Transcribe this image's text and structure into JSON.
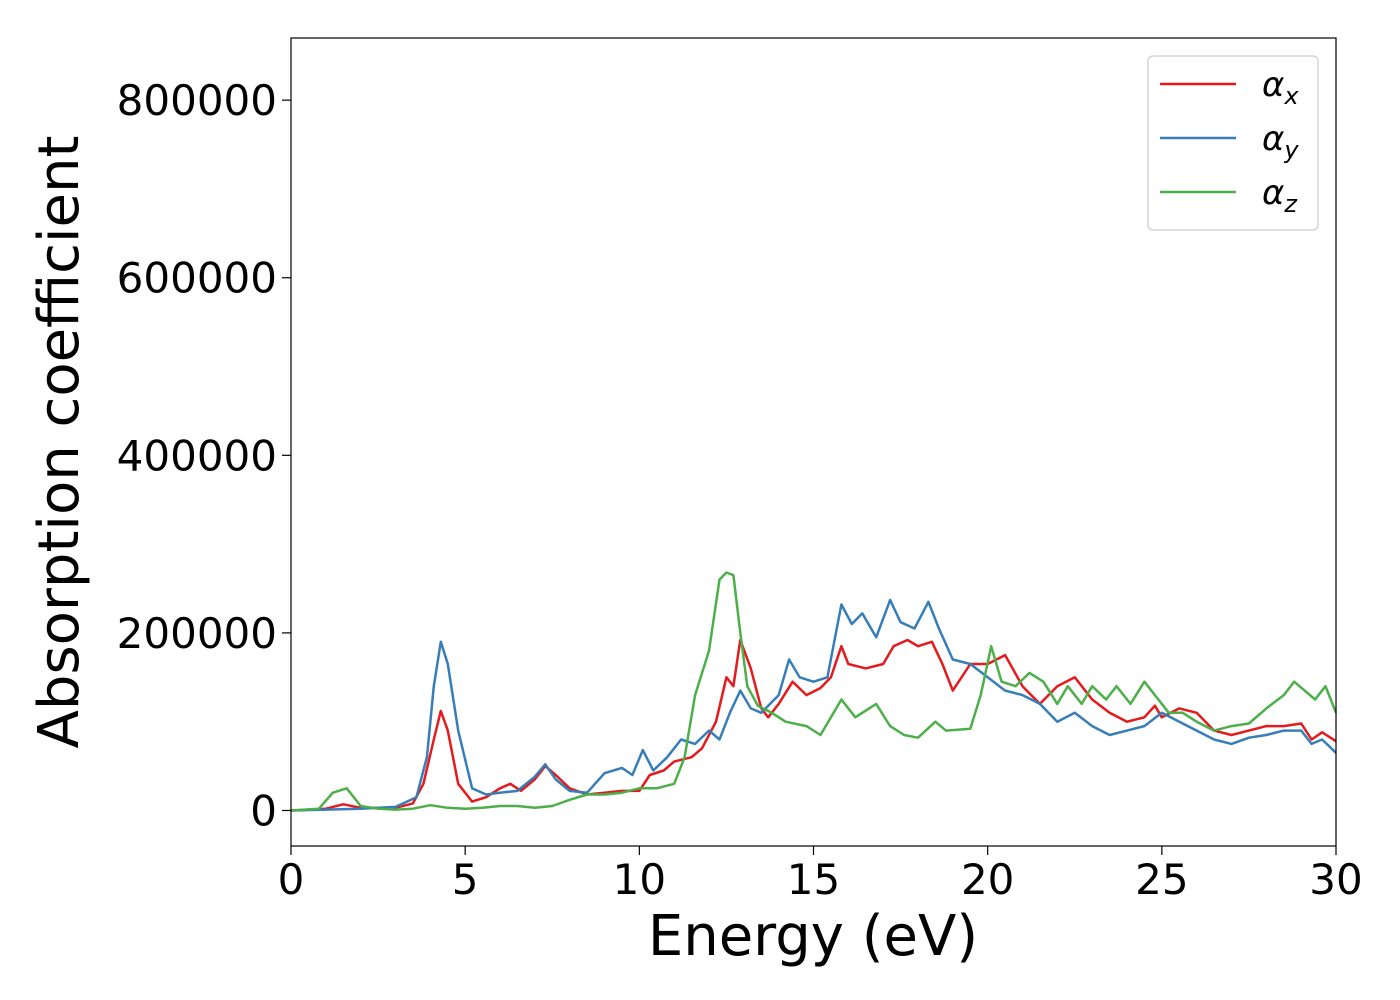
{
  "chart_data": {
    "type": "line",
    "xlabel": "Energy (eV)",
    "ylabel": "Absorption coefficient",
    "xlim": [
      0,
      30
    ],
    "ylim": [
      -40000,
      870000
    ],
    "x_ticks": [
      0,
      5,
      10,
      15,
      20,
      25,
      30
    ],
    "x_tick_labels": [
      "0",
      "5",
      "10",
      "15",
      "20",
      "25",
      "30"
    ],
    "y_ticks": [
      0,
      200000,
      400000,
      600000,
      800000
    ],
    "y_tick_labels": [
      "0",
      "200000",
      "400000",
      "600000",
      "800000"
    ],
    "grid": false,
    "legend_position": "top-right",
    "series": [
      {
        "name": "αx",
        "legend": {
          "base": "α",
          "sub": "x"
        },
        "color": "#e41a1c",
        "points": [
          [
            0,
            0
          ],
          [
            1,
            2000
          ],
          [
            1.5,
            7000
          ],
          [
            2,
            3000
          ],
          [
            3,
            3000
          ],
          [
            3.5,
            8000
          ],
          [
            3.8,
            30000
          ],
          [
            4.1,
            80000
          ],
          [
            4.3,
            112000
          ],
          [
            4.5,
            90000
          ],
          [
            4.8,
            30000
          ],
          [
            5.2,
            10000
          ],
          [
            5.6,
            15000
          ],
          [
            6,
            25000
          ],
          [
            6.3,
            30000
          ],
          [
            6.6,
            22000
          ],
          [
            7,
            35000
          ],
          [
            7.3,
            50000
          ],
          [
            7.6,
            40000
          ],
          [
            8,
            25000
          ],
          [
            8.5,
            18000
          ],
          [
            9,
            20000
          ],
          [
            9.5,
            22000
          ],
          [
            10,
            22000
          ],
          [
            10.3,
            40000
          ],
          [
            10.7,
            45000
          ],
          [
            11,
            55000
          ],
          [
            11.5,
            60000
          ],
          [
            11.8,
            70000
          ],
          [
            12.2,
            100000
          ],
          [
            12.5,
            150000
          ],
          [
            12.7,
            140000
          ],
          [
            12.9,
            192000
          ],
          [
            13.2,
            160000
          ],
          [
            13.5,
            115000
          ],
          [
            13.7,
            105000
          ],
          [
            14,
            120000
          ],
          [
            14.4,
            145000
          ],
          [
            14.8,
            130000
          ],
          [
            15.2,
            138000
          ],
          [
            15.5,
            150000
          ],
          [
            15.8,
            185000
          ],
          [
            16,
            165000
          ],
          [
            16.5,
            160000
          ],
          [
            17,
            165000
          ],
          [
            17.3,
            185000
          ],
          [
            17.7,
            192000
          ],
          [
            18,
            185000
          ],
          [
            18.4,
            190000
          ],
          [
            18.7,
            165000
          ],
          [
            19,
            135000
          ],
          [
            19.5,
            165000
          ],
          [
            20,
            165000
          ],
          [
            20.5,
            175000
          ],
          [
            21,
            140000
          ],
          [
            21.5,
            120000
          ],
          [
            22,
            140000
          ],
          [
            22.5,
            150000
          ],
          [
            23,
            125000
          ],
          [
            23.5,
            110000
          ],
          [
            24,
            100000
          ],
          [
            24.5,
            105000
          ],
          [
            24.8,
            118000
          ],
          [
            25,
            105000
          ],
          [
            25.5,
            115000
          ],
          [
            26,
            110000
          ],
          [
            26.5,
            90000
          ],
          [
            27,
            85000
          ],
          [
            27.5,
            90000
          ],
          [
            28,
            95000
          ],
          [
            28.5,
            95000
          ],
          [
            29,
            98000
          ],
          [
            29.3,
            80000
          ],
          [
            29.6,
            88000
          ],
          [
            30,
            78000
          ]
        ]
      },
      {
        "name": "αy",
        "legend": {
          "base": "α",
          "sub": "y"
        },
        "color": "#377eb8",
        "points": [
          [
            0,
            0
          ],
          [
            1,
            1000
          ],
          [
            2,
            2000
          ],
          [
            3,
            4000
          ],
          [
            3.6,
            15000
          ],
          [
            3.9,
            60000
          ],
          [
            4.1,
            140000
          ],
          [
            4.3,
            190000
          ],
          [
            4.5,
            165000
          ],
          [
            4.8,
            90000
          ],
          [
            5.2,
            25000
          ],
          [
            5.6,
            18000
          ],
          [
            6,
            20000
          ],
          [
            6.5,
            22000
          ],
          [
            7,
            38000
          ],
          [
            7.3,
            52000
          ],
          [
            7.6,
            35000
          ],
          [
            8,
            22000
          ],
          [
            8.5,
            20000
          ],
          [
            9,
            42000
          ],
          [
            9.5,
            48000
          ],
          [
            9.8,
            40000
          ],
          [
            10.1,
            68000
          ],
          [
            10.4,
            45000
          ],
          [
            10.8,
            60000
          ],
          [
            11.2,
            80000
          ],
          [
            11.6,
            75000
          ],
          [
            12,
            90000
          ],
          [
            12.3,
            80000
          ],
          [
            12.6,
            110000
          ],
          [
            12.9,
            135000
          ],
          [
            13.2,
            115000
          ],
          [
            13.5,
            110000
          ],
          [
            14,
            130000
          ],
          [
            14.3,
            170000
          ],
          [
            14.6,
            150000
          ],
          [
            15,
            145000
          ],
          [
            15.4,
            150000
          ],
          [
            15.8,
            232000
          ],
          [
            16.1,
            210000
          ],
          [
            16.4,
            222000
          ],
          [
            16.8,
            195000
          ],
          [
            17.2,
            237000
          ],
          [
            17.5,
            212000
          ],
          [
            17.9,
            205000
          ],
          [
            18.3,
            235000
          ],
          [
            18.6,
            205000
          ],
          [
            19,
            170000
          ],
          [
            19.5,
            165000
          ],
          [
            20,
            150000
          ],
          [
            20.5,
            135000
          ],
          [
            21,
            130000
          ],
          [
            21.5,
            120000
          ],
          [
            22,
            100000
          ],
          [
            22.5,
            110000
          ],
          [
            23,
            95000
          ],
          [
            23.5,
            85000
          ],
          [
            24,
            90000
          ],
          [
            24.5,
            95000
          ],
          [
            25,
            110000
          ],
          [
            25.5,
            100000
          ],
          [
            26,
            90000
          ],
          [
            26.5,
            80000
          ],
          [
            27,
            75000
          ],
          [
            27.5,
            82000
          ],
          [
            28,
            85000
          ],
          [
            28.5,
            90000
          ],
          [
            29,
            90000
          ],
          [
            29.3,
            75000
          ],
          [
            29.6,
            80000
          ],
          [
            30,
            65000
          ]
        ]
      },
      {
        "name": "αz",
        "legend": {
          "base": "α",
          "sub": "z"
        },
        "color": "#4daf4a",
        "points": [
          [
            0,
            0
          ],
          [
            0.8,
            2000
          ],
          [
            1.2,
            20000
          ],
          [
            1.6,
            25000
          ],
          [
            2,
            5000
          ],
          [
            2.5,
            2000
          ],
          [
            3,
            1000
          ],
          [
            3.5,
            2000
          ],
          [
            4,
            6000
          ],
          [
            4.5,
            3000
          ],
          [
            5,
            2000
          ],
          [
            5.5,
            3000
          ],
          [
            6,
            5000
          ],
          [
            6.5,
            5000
          ],
          [
            7,
            3000
          ],
          [
            7.5,
            5000
          ],
          [
            8,
            12000
          ],
          [
            8.5,
            18000
          ],
          [
            9,
            18000
          ],
          [
            9.5,
            20000
          ],
          [
            10,
            25000
          ],
          [
            10.5,
            25000
          ],
          [
            11,
            30000
          ],
          [
            11.3,
            60000
          ],
          [
            11.6,
            130000
          ],
          [
            12,
            180000
          ],
          [
            12.3,
            260000
          ],
          [
            12.5,
            268000
          ],
          [
            12.7,
            265000
          ],
          [
            12.9,
            200000
          ],
          [
            13.1,
            140000
          ],
          [
            13.4,
            118000
          ],
          [
            13.8,
            110000
          ],
          [
            14.2,
            100000
          ],
          [
            14.8,
            95000
          ],
          [
            15.2,
            85000
          ],
          [
            15.8,
            125000
          ],
          [
            16.2,
            105000
          ],
          [
            16.8,
            120000
          ],
          [
            17.2,
            95000
          ],
          [
            17.6,
            85000
          ],
          [
            18,
            82000
          ],
          [
            18.5,
            100000
          ],
          [
            18.8,
            90000
          ],
          [
            19.5,
            92000
          ],
          [
            19.8,
            130000
          ],
          [
            20.1,
            185000
          ],
          [
            20.4,
            145000
          ],
          [
            20.8,
            140000
          ],
          [
            21.2,
            155000
          ],
          [
            21.6,
            145000
          ],
          [
            22,
            120000
          ],
          [
            22.3,
            140000
          ],
          [
            22.7,
            120000
          ],
          [
            23,
            140000
          ],
          [
            23.4,
            125000
          ],
          [
            23.7,
            140000
          ],
          [
            24.1,
            120000
          ],
          [
            24.5,
            145000
          ],
          [
            24.8,
            130000
          ],
          [
            25.2,
            110000
          ],
          [
            25.6,
            110000
          ],
          [
            26,
            100000
          ],
          [
            26.5,
            90000
          ],
          [
            27,
            95000
          ],
          [
            27.5,
            98000
          ],
          [
            28,
            115000
          ],
          [
            28.5,
            130000
          ],
          [
            28.8,
            145000
          ],
          [
            29.1,
            135000
          ],
          [
            29.4,
            125000
          ],
          [
            29.7,
            140000
          ],
          [
            30,
            110000
          ]
        ]
      }
    ]
  }
}
